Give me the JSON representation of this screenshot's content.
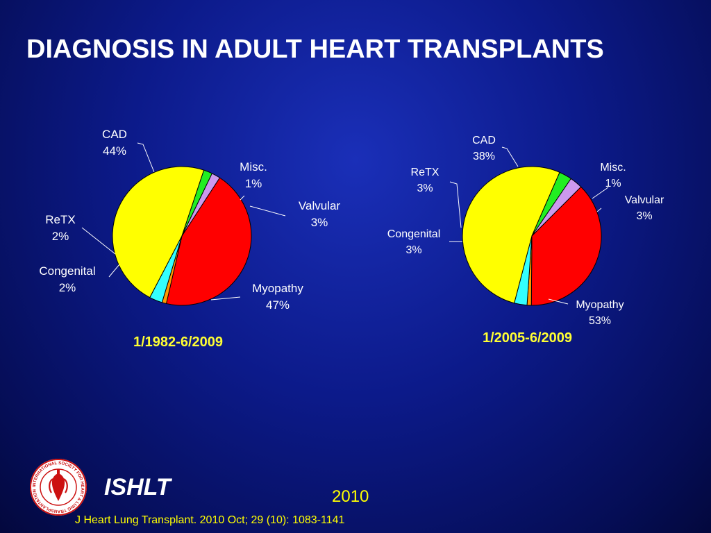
{
  "title": "DIAGNOSIS IN ADULT HEART TRANSPLANTS",
  "colors": {
    "CAD": "#ff0000",
    "Misc.": "#ff9900",
    "Valvular": "#33ffff",
    "Myopathy": "#ffff00",
    "Congenital": "#22ee22",
    "ReTX": "#cc99ee"
  },
  "chart_data": [
    {
      "type": "pie",
      "title": "1/1982-6/2009",
      "slices": [
        {
          "label": "CAD",
          "percent": "44%",
          "value": 44
        },
        {
          "label": "Misc.",
          "percent": "1%",
          "value": 1
        },
        {
          "label": "Valvular",
          "percent": "3%",
          "value": 3
        },
        {
          "label": "Myopathy",
          "percent": "47%",
          "value": 47
        },
        {
          "label": "Congenital",
          "percent": "2%",
          "value": 2
        },
        {
          "label": "ReTX",
          "percent": "2%",
          "value": 2
        }
      ]
    },
    {
      "type": "pie",
      "title": "1/2005-6/2009",
      "slices": [
        {
          "label": "CAD",
          "percent": "38%",
          "value": 38
        },
        {
          "label": "Misc.",
          "percent": "1%",
          "value": 1
        },
        {
          "label": "Valvular",
          "percent": "3%",
          "value": 3
        },
        {
          "label": "Myopathy",
          "percent": "53%",
          "value": 53
        },
        {
          "label": "Congenital",
          "percent": "3%",
          "value": 3
        },
        {
          "label": "ReTX",
          "percent": "3%",
          "value": 3
        }
      ]
    }
  ],
  "footer": {
    "org": "ISHLT",
    "year": "2010",
    "citation": "J Heart Lung Transplant. 2010 Oct; 29 (10): 1083-1141"
  },
  "logo": {
    "text": "INTERNATIONAL SOCIETY FOR HEART & LUNG TRANSPLANTATION"
  }
}
